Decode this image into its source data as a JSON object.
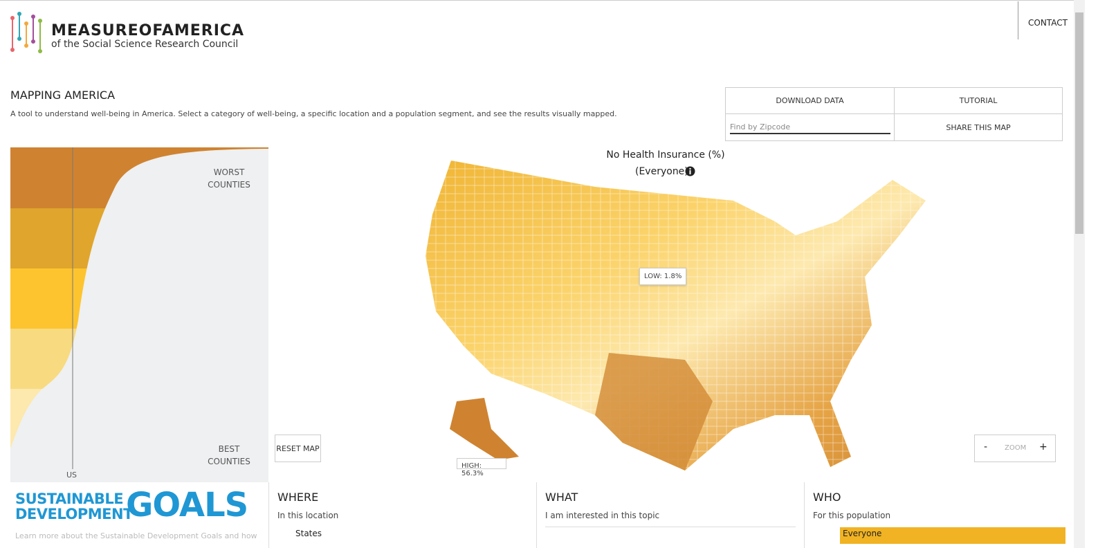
{
  "header": {
    "logo_title": "MEASUREOFAMERICA",
    "logo_subtitle": "of the Social Science Research Council",
    "contact": "CONTACT"
  },
  "intro": {
    "title": "MAPPING AMERICA",
    "description": "A tool to understand well-being in America. Select a category of well-being, a specific location and a population segment, and see the results visually mapped."
  },
  "toolbar": {
    "download": "DOWNLOAD DATA",
    "tutorial": "TUTORIAL",
    "zipcode_placeholder": "Find by Zipcode",
    "share": "SHARE THIS MAP"
  },
  "distribution": {
    "worst": "WORST COUNTIES",
    "best": "BEST COUNTIES",
    "us": "US"
  },
  "map": {
    "title": "No Health Insurance (%)",
    "subtitle": "(Everyone)",
    "low": "LOW: 1.8%",
    "high": "HIGH: 56.3%",
    "reset": "RESET MAP",
    "zoom": "ZOOM",
    "zoom_out": "-",
    "zoom_in": "+"
  },
  "sdg": {
    "line1": "SUSTAINABLE",
    "line2": "DEVELOPMENT",
    "goals": "GOALS",
    "note": "Learn more about the Sustainable Development Goals and how"
  },
  "panels": [
    {
      "title": "WHERE",
      "subtitle": "In this location",
      "option": "States"
    },
    {
      "title": "WHAT",
      "subtitle": "I am interested in this topic"
    },
    {
      "title": "WHO",
      "subtitle": "For this population",
      "option": "Everyone"
    }
  ]
}
